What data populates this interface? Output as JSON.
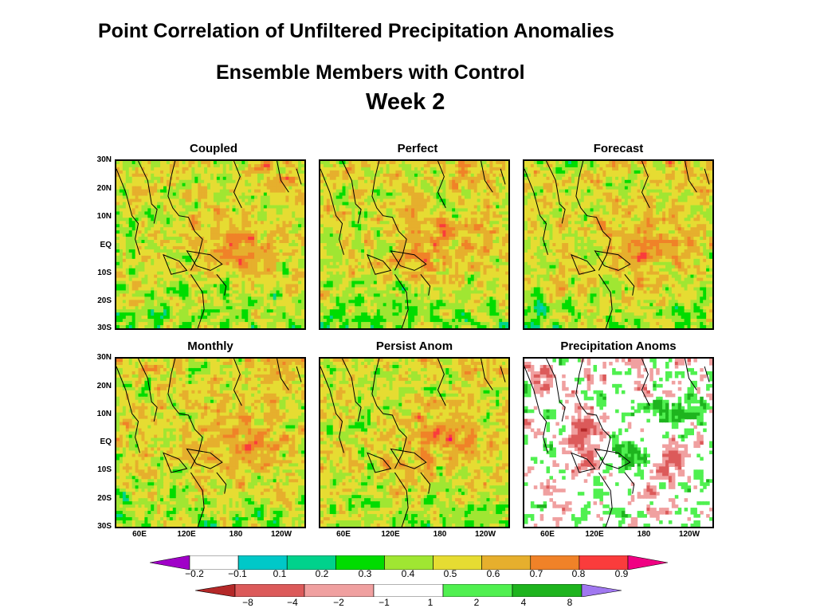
{
  "titles": {
    "line1": "Point Correlation of Unfiltered Precipitation Anomalies",
    "line2": "Ensemble Members with Control",
    "line3": "Week 2"
  },
  "panels": [
    {
      "title": "Coupled",
      "type": "correlation"
    },
    {
      "title": "Perfect",
      "type": "correlation"
    },
    {
      "title": "Forecast",
      "type": "correlation"
    },
    {
      "title": "Monthly",
      "type": "correlation"
    },
    {
      "title": "Persist Anom",
      "type": "correlation"
    },
    {
      "title": "Precipitation Anoms",
      "type": "anomaly"
    }
  ],
  "axes": {
    "lat_labels": [
      "30N",
      "20N",
      "10N",
      "EQ",
      "10S",
      "20S",
      "30S"
    ],
    "lon_labels": [
      "60E",
      "120E",
      "180",
      "120W"
    ]
  },
  "colorbar_correlation": {
    "labels": [
      "−0.2",
      "−0.1",
      "0.1",
      "0.2",
      "0.3",
      "0.4",
      "0.5",
      "0.6",
      "0.7",
      "0.8",
      "0.9"
    ],
    "colors": [
      "#a000c8",
      "#ffffff",
      "#00c8c8",
      "#00d28c",
      "#00dc00",
      "#a0e632",
      "#e6dc32",
      "#e6af2d",
      "#f08228",
      "#fa3c3c",
      "#f00082"
    ]
  },
  "colorbar_anomaly": {
    "labels": [
      "−8",
      "−4",
      "−2",
      "−1",
      "1",
      "2",
      "4",
      "8"
    ],
    "colors": [
      "#b42828",
      "#dc5a5a",
      "#f0a0a0",
      "#ffffff",
      "#50f050",
      "#1eb41e",
      "#a078f0"
    ]
  }
}
